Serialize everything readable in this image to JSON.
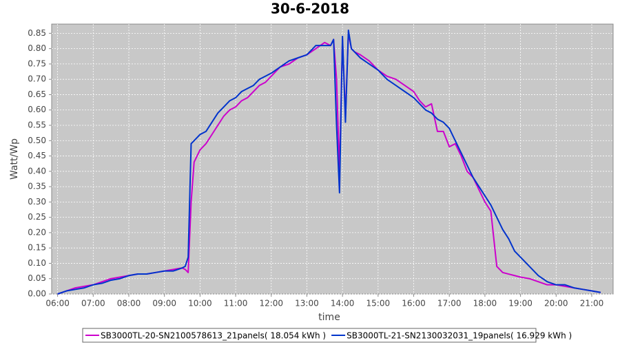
{
  "chart_data": {
    "type": "line",
    "title": "30-6-2018",
    "x_label": "time",
    "y_label": "Watt/Wp",
    "x": [
      "06:00",
      "06:15",
      "06:30",
      "06:45",
      "07:00",
      "07:15",
      "07:30",
      "07:45",
      "08:00",
      "08:15",
      "08:30",
      "08:45",
      "09:00",
      "09:15",
      "09:30",
      "09:35",
      "09:40",
      "09:45",
      "09:50",
      "10:00",
      "10:10",
      "10:20",
      "10:30",
      "10:40",
      "10:50",
      "11:00",
      "11:10",
      "11:20",
      "11:30",
      "11:40",
      "11:50",
      "12:00",
      "12:15",
      "12:30",
      "12:45",
      "13:00",
      "13:15",
      "13:30",
      "13:40",
      "13:45",
      "13:50",
      "13:55",
      "14:00",
      "14:05",
      "14:10",
      "14:15",
      "14:20",
      "14:30",
      "14:45",
      "15:00",
      "15:15",
      "15:30",
      "15:45",
      "16:00",
      "16:10",
      "16:20",
      "16:30",
      "16:40",
      "16:50",
      "17:00",
      "17:10",
      "17:20",
      "17:30",
      "17:40",
      "17:50",
      "18:00",
      "18:10",
      "18:20",
      "18:30",
      "18:40",
      "18:50",
      "19:00",
      "19:15",
      "19:30",
      "19:45",
      "20:00",
      "20:15",
      "20:30",
      "20:45",
      "21:00",
      "21:15"
    ],
    "series": [
      {
        "name": "SB3000TL-20-SN2100578613_21panels( 18.054 kWh )",
        "color": "#cc00cc",
        "values": [
          0,
          0.01,
          0.02,
          0.025,
          0.03,
          0.04,
          0.05,
          0.055,
          0.06,
          0.065,
          0.065,
          0.07,
          0.075,
          0.08,
          0.085,
          0.08,
          0.07,
          0.3,
          0.43,
          0.47,
          0.49,
          0.52,
          0.55,
          0.58,
          0.6,
          0.61,
          0.63,
          0.64,
          0.66,
          0.68,
          0.69,
          0.71,
          0.74,
          0.75,
          0.77,
          0.78,
          0.8,
          0.82,
          0.81,
          0.83,
          0.7,
          0.4,
          0.83,
          0.58,
          0.85,
          0.8,
          0.79,
          0.78,
          0.76,
          0.73,
          0.71,
          0.7,
          0.68,
          0.66,
          0.63,
          0.61,
          0.62,
          0.53,
          0.53,
          0.48,
          0.49,
          0.45,
          0.4,
          0.38,
          0.34,
          0.3,
          0.27,
          0.09,
          0.07,
          0.065,
          0.06,
          0.055,
          0.05,
          0.04,
          0.03,
          0.03,
          0.025,
          0.02,
          0.015,
          0.01,
          0.005
        ]
      },
      {
        "name": "SB3000TL-21-SN2130032031_19panels( 16.929 kWh )",
        "color": "#0033cc",
        "values": [
          0,
          0.01,
          0.015,
          0.02,
          0.03,
          0.035,
          0.045,
          0.05,
          0.06,
          0.065,
          0.065,
          0.07,
          0.075,
          0.075,
          0.085,
          0.09,
          0.12,
          0.49,
          0.5,
          0.52,
          0.53,
          0.56,
          0.59,
          0.61,
          0.63,
          0.64,
          0.66,
          0.67,
          0.68,
          0.7,
          0.71,
          0.72,
          0.74,
          0.76,
          0.77,
          0.78,
          0.81,
          0.81,
          0.81,
          0.83,
          0.55,
          0.33,
          0.84,
          0.56,
          0.86,
          0.8,
          0.79,
          0.77,
          0.75,
          0.73,
          0.7,
          0.68,
          0.66,
          0.64,
          0.62,
          0.6,
          0.59,
          0.57,
          0.56,
          0.54,
          0.5,
          0.46,
          0.42,
          0.38,
          0.35,
          0.32,
          0.29,
          0.25,
          0.21,
          0.18,
          0.14,
          0.12,
          0.09,
          0.06,
          0.04,
          0.03,
          0.03,
          0.02,
          0.015,
          0.01,
          0.005
        ]
      }
    ],
    "xlim": [
      "05:50",
      "21:36"
    ],
    "xticks": [
      "06:00",
      "07:00",
      "08:00",
      "09:00",
      "10:00",
      "11:00",
      "12:00",
      "13:00",
      "14:00",
      "15:00",
      "16:00",
      "17:00",
      "18:00",
      "19:00",
      "20:00",
      "21:00"
    ],
    "ylim": [
      0,
      0.88
    ],
    "yticks": [
      {
        "value": 0,
        "label": "0.00"
      },
      0.05,
      {
        "value": 0.1,
        "label": "0.10"
      },
      0.15,
      {
        "value": 0.2,
        "label": "0.20"
      },
      0.25,
      {
        "value": 0.3,
        "label": "0.30"
      },
      0.35,
      {
        "value": 0.4,
        "label": "0.40"
      },
      0.45,
      {
        "value": 0.5,
        "label": "0.50"
      },
      0.55,
      {
        "value": 0.6,
        "label": "0.60"
      },
      0.65,
      {
        "value": 0.7,
        "label": "0.70"
      },
      0.75,
      {
        "value": 0.8,
        "label": "0.80"
      },
      0.85
    ],
    "grid": true,
    "legend": "bottom",
    "plot_background": "#c8c8c8",
    "grid_color": "#ffffff"
  }
}
